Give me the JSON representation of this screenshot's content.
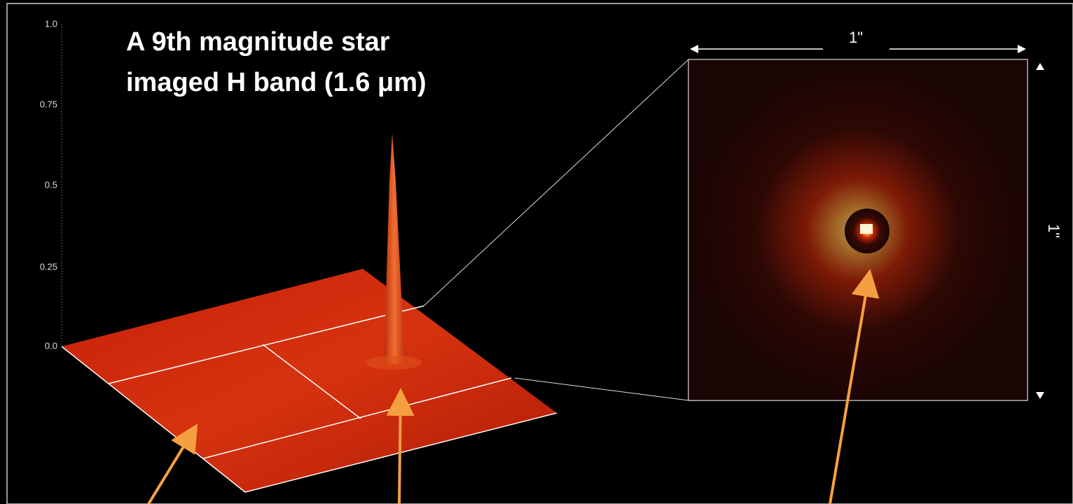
{
  "title": {
    "line1": "A 9th magnitude star",
    "line2": "imaged H band (1.6 μm)"
  },
  "axis": {
    "ticks": [
      "1.0",
      "0.75",
      "0.5",
      "0.25",
      "0.0"
    ]
  },
  "inset": {
    "width_label": "1\"",
    "height_label": "1\""
  }
}
